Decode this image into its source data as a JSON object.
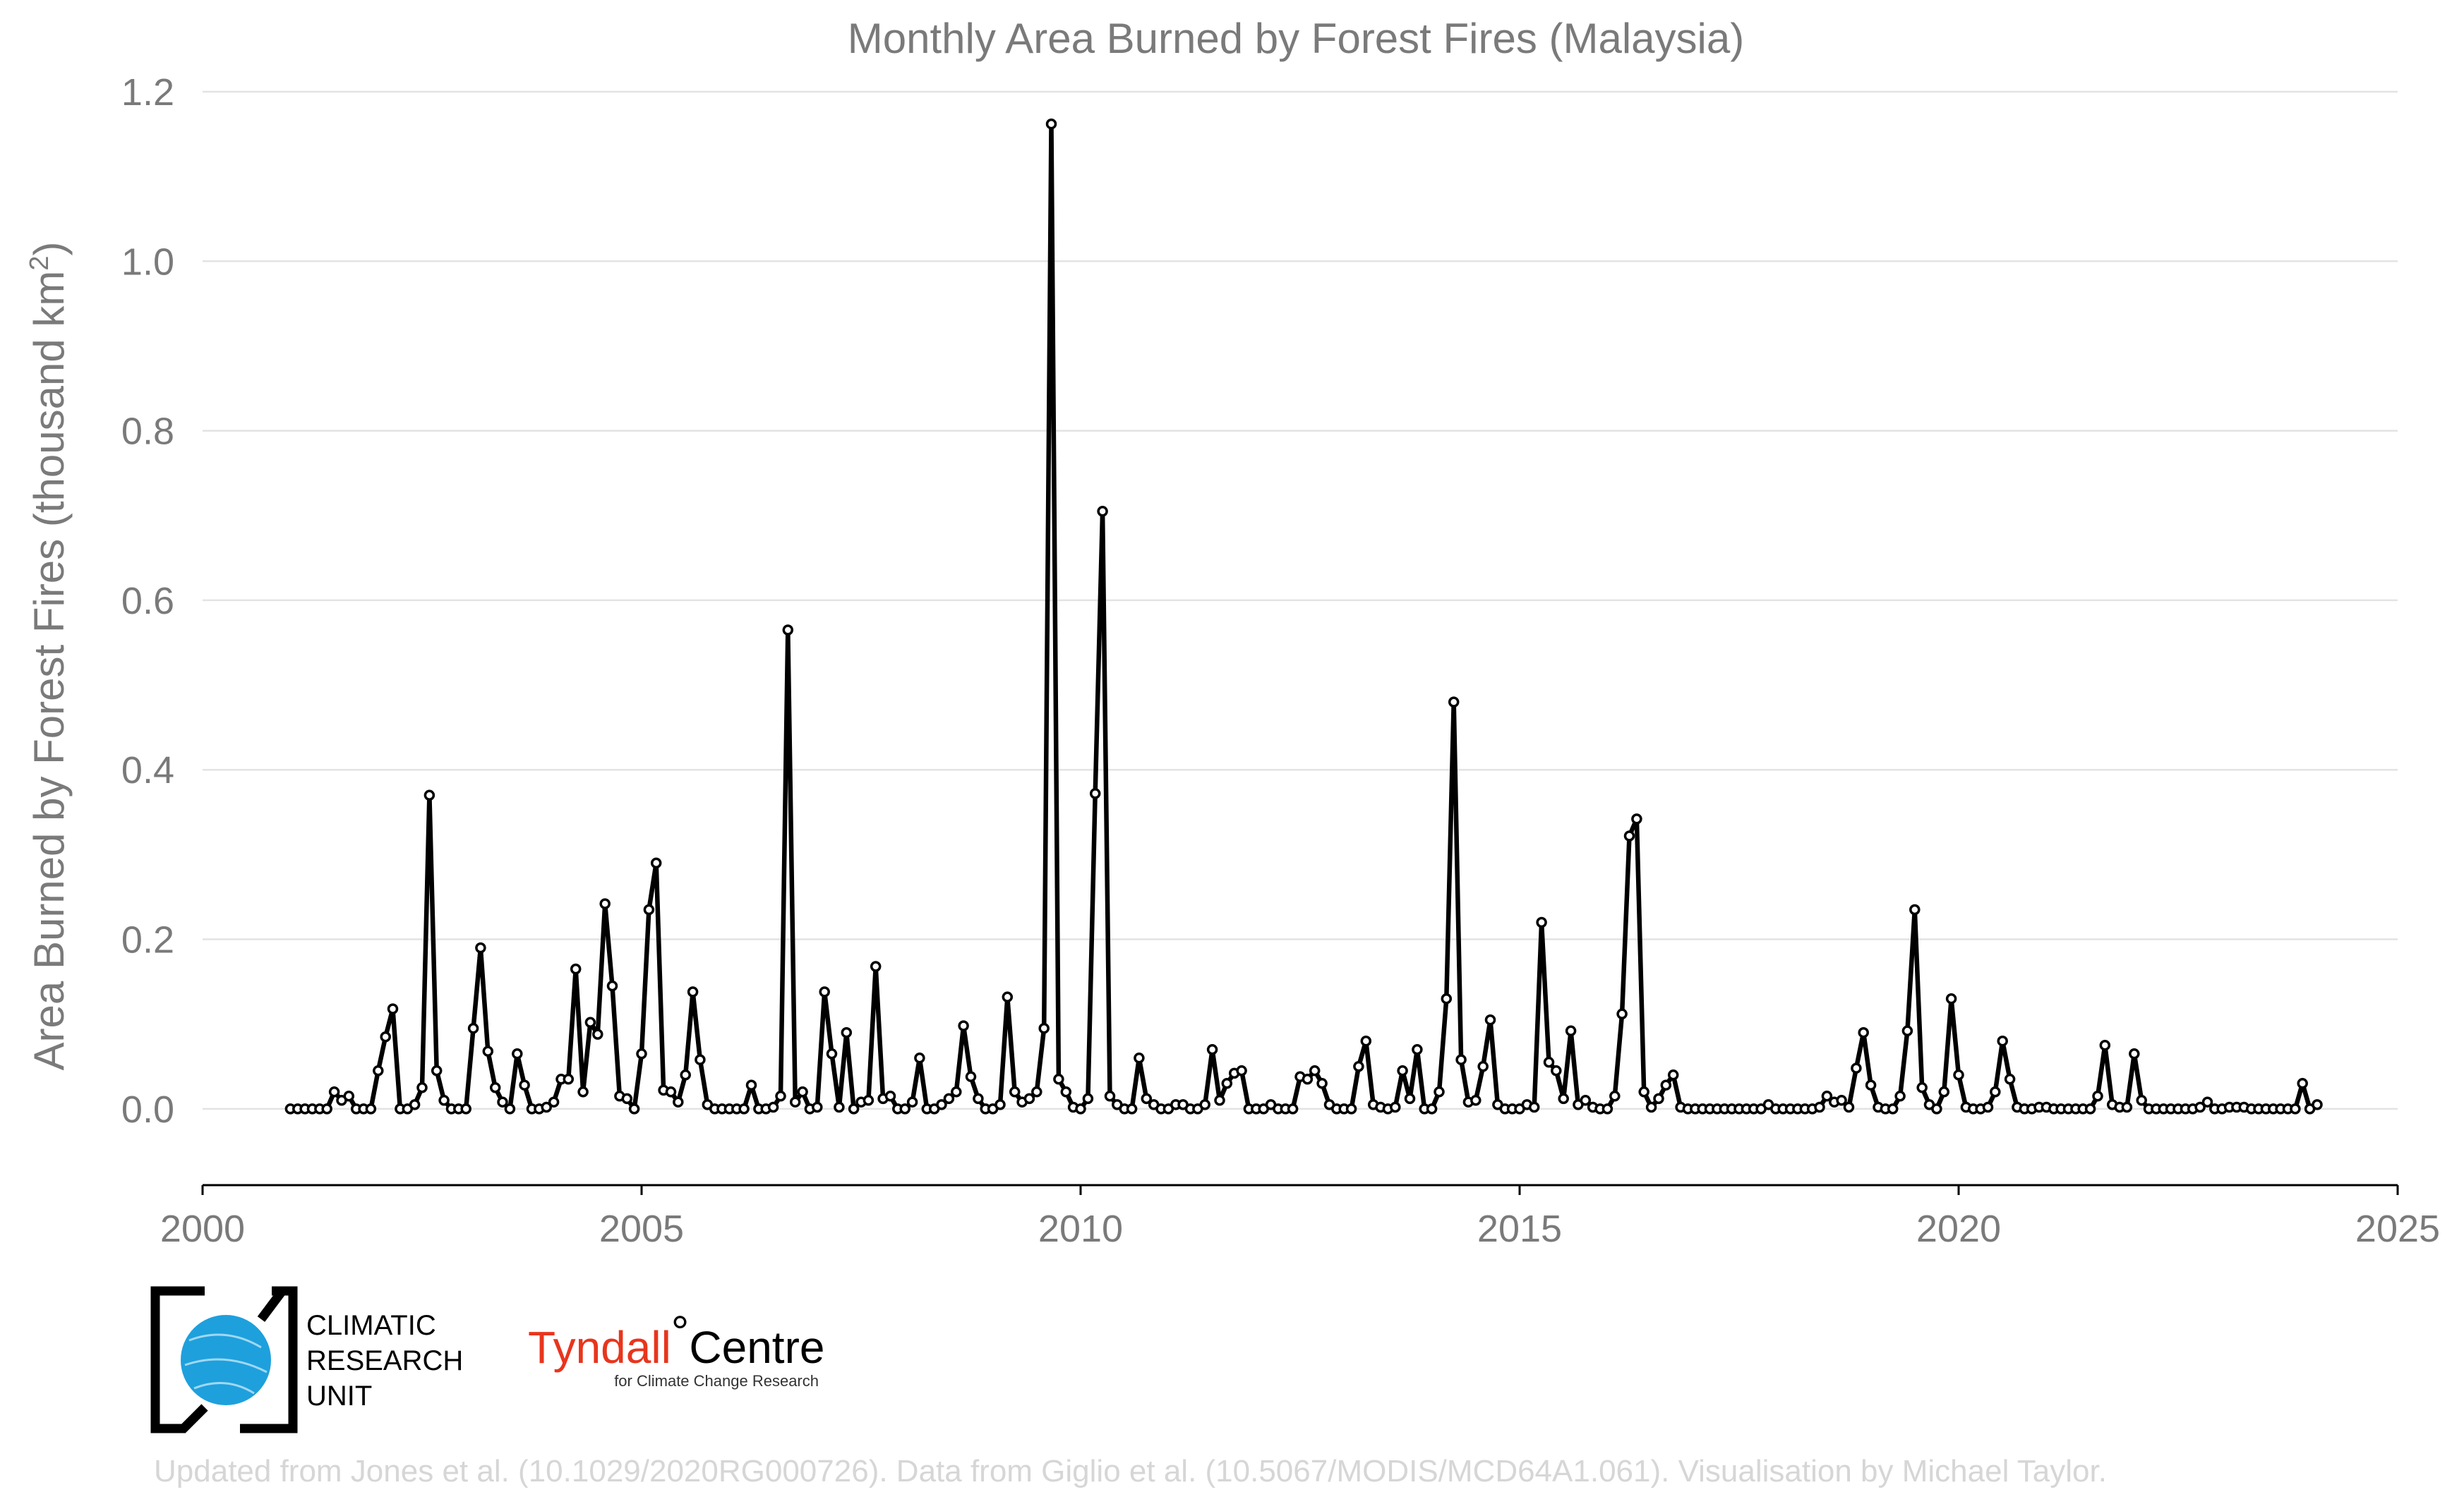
{
  "chart_data": {
    "type": "line",
    "title": "Monthly Area Burned by Forest Fires (Malaysia)",
    "ylabel": "Area Burned by Forest Fires (thousand km",
    "ylabel_superscript": "2",
    "ylabel_close": ")",
    "xlabel": "",
    "xlim": [
      2000,
      2025
    ],
    "ylim": [
      -0.09,
      1.2
    ],
    "x_ticks": [
      2000,
      2005,
      2010,
      2015,
      2020,
      2025
    ],
    "y_ticks": [
      "0.0",
      "0.2",
      "0.4",
      "0.6",
      "0.8",
      "1.0",
      "1.2"
    ],
    "grid": "horizontal",
    "start": "2001-01",
    "frequency": "monthly",
    "line_color": "#000000",
    "marker_fill": "#ffffff",
    "values": [
      0.0,
      0.0,
      0.0,
      0.0,
      0.0,
      0.0,
      0.02,
      0.01,
      0.015,
      0.0,
      0.0,
      0.0,
      0.045,
      0.085,
      0.118,
      0.0,
      0.0,
      0.005,
      0.025,
      0.37,
      0.045,
      0.01,
      0.0,
      0.0,
      0.0,
      0.095,
      0.19,
      0.068,
      0.025,
      0.008,
      0.0,
      0.065,
      0.028,
      0.0,
      0.0,
      0.002,
      0.008,
      0.035,
      0.035,
      0.165,
      0.02,
      0.102,
      0.088,
      0.242,
      0.145,
      0.015,
      0.012,
      0.0,
      0.065,
      0.235,
      0.29,
      0.022,
      0.02,
      0.008,
      0.04,
      0.138,
      0.058,
      0.005,
      0.0,
      0.0,
      0.0,
      0.0,
      0.0,
      0.028,
      0.0,
      0.0,
      0.002,
      0.015,
      0.565,
      0.008,
      0.02,
      0.0,
      0.002,
      0.138,
      0.065,
      0.002,
      0.09,
      0.0,
      0.008,
      0.01,
      0.168,
      0.012,
      0.015,
      0.0,
      0.0,
      0.008,
      0.06,
      0.0,
      0.0,
      0.005,
      0.012,
      0.02,
      0.098,
      0.038,
      0.012,
      0.0,
      0.0,
      0.005,
      0.132,
      0.02,
      0.008,
      0.012,
      0.02,
      0.095,
      1.162,
      0.035,
      0.02,
      0.002,
      0.0,
      0.012,
      0.372,
      0.705,
      0.015,
      0.005,
      0.0,
      0.0,
      0.06,
      0.012,
      0.005,
      0.0,
      0.0,
      0.005,
      0.005,
      0.0,
      0.0,
      0.005,
      0.07,
      0.01,
      0.03,
      0.042,
      0.045,
      0.0,
      0.0,
      0.0,
      0.005,
      0.0,
      0.0,
      0.0,
      0.038,
      0.035,
      0.045,
      0.03,
      0.005,
      0.0,
      0.0,
      0.0,
      0.05,
      0.08,
      0.005,
      0.002,
      0.0,
      0.002,
      0.045,
      0.012,
      0.07,
      0.0,
      0.0,
      0.02,
      0.13,
      0.48,
      0.058,
      0.008,
      0.01,
      0.05,
      0.105,
      0.005,
      0.0,
      0.0,
      0.0,
      0.005,
      0.002,
      0.22,
      0.055,
      0.045,
      0.012,
      0.092,
      0.005,
      0.01,
      0.002,
      0.0,
      0.0,
      0.015,
      0.112,
      0.322,
      0.342,
      0.02,
      0.002,
      0.012,
      0.028,
      0.04,
      0.002,
      0.0,
      0.0,
      0.0,
      0.0,
      0.0,
      0.0,
      0.0,
      0.0,
      0.0,
      0.0,
      0.0,
      0.005,
      0.0,
      0.0,
      0.0,
      0.0,
      0.0,
      0.0,
      0.002,
      0.015,
      0.008,
      0.01,
      0.002,
      0.048,
      0.09,
      0.028,
      0.002,
      0.0,
      0.0,
      0.015,
      0.092,
      0.235,
      0.025,
      0.005,
      0.0,
      0.02,
      0.13,
      0.04,
      0.002,
      0.0,
      0.0,
      0.002,
      0.02,
      0.08,
      0.035,
      0.002,
      0.0,
      0.0,
      0.002,
      0.002,
      0.0,
      0.0,
      0.0,
      0.0,
      0.0,
      0.0,
      0.015,
      0.075,
      0.005,
      0.002,
      0.002,
      0.065,
      0.01,
      0.0,
      0.0,
      0.0,
      0.0,
      0.0,
      0.0,
      0.0,
      0.002,
      0.008,
      0.0,
      0.0,
      0.002,
      0.002,
      0.002,
      0.0,
      0.0,
      0.0,
      0.0,
      0.0,
      0.0,
      0.0,
      0.03,
      0.0,
      0.005
    ]
  },
  "logos": {
    "cru": {
      "line1": "CLIMATIC",
      "line2": "RESEARCH",
      "line3": "UNIT",
      "globe_color": "#1ea0dd"
    },
    "tyndall": {
      "name": "Tyndall",
      "degree": "°",
      "centre": "Centre",
      "subtitle": "for Climate Change Research",
      "name_color": "#e8351d"
    }
  },
  "credit": "Updated from Jones et al. (10.1029/2020RG000726). Data from Giglio et al. (10.5067/MODIS/MCD64A1.061). Visualisation by Michael Taylor."
}
